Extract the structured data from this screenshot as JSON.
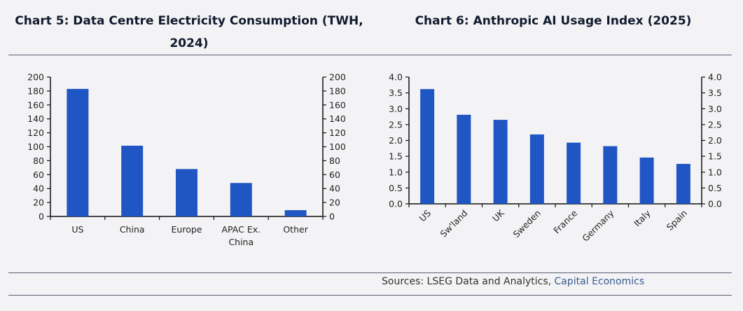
{
  "page": {
    "sources_prefix": "Sources: LSEG Data and Analytics, ",
    "sources_brand": "Capital Economics",
    "colors": {
      "bar": "#1f56c4",
      "axis": "#111111",
      "rule": "#5b5e73",
      "brand_text": "#3a5a8c"
    }
  },
  "chart_data": [
    {
      "type": "bar",
      "title": "Chart 5: Data Centre Electricity Consumption (TWH, 2024)",
      "title_lines": [
        "Chart 5: Data Centre Electricity Consumption (TWH,",
        "2024)"
      ],
      "categories": [
        "US",
        "China",
        "Europe",
        "APAC Ex. China",
        "Other"
      ],
      "category_lines": [
        [
          "US"
        ],
        [
          "China"
        ],
        [
          "Europe"
        ],
        [
          "APAC Ex.",
          "China"
        ],
        [
          "Other"
        ]
      ],
      "values": [
        183,
        101.5,
        68,
        48,
        9
      ],
      "xlabel": "",
      "ylabel": "",
      "ylim": [
        0,
        200
      ],
      "yticks": [
        0,
        20,
        40,
        60,
        80,
        100,
        120,
        140,
        160,
        180,
        200
      ],
      "ytick_labels": [
        "0",
        "20",
        "40",
        "60",
        "80",
        "100",
        "120",
        "140",
        "160",
        "180",
        "200"
      ],
      "dual_y_axis": true,
      "grid": false,
      "legend": "none",
      "xtick_rotation": 0
    },
    {
      "type": "bar",
      "title": "Chart 6: Anthropic AI Usage Index (2025)",
      "title_lines": [
        "Chart 6: Anthropic AI Usage Index (2025)"
      ],
      "categories": [
        "US",
        "Sw'land",
        "UK",
        "Sweden",
        "France",
        "Germany",
        "Italy",
        "Spain"
      ],
      "category_lines": [
        [
          "US"
        ],
        [
          "Sw'land"
        ],
        [
          "UK"
        ],
        [
          "Sweden"
        ],
        [
          "France"
        ],
        [
          "Germany"
        ],
        [
          "Italy"
        ],
        [
          "Spain"
        ]
      ],
      "values": [
        3.62,
        2.81,
        2.65,
        2.19,
        1.93,
        1.82,
        1.46,
        1.26
      ],
      "xlabel": "",
      "ylabel": "",
      "ylim": [
        0,
        4
      ],
      "yticks": [
        0,
        0.5,
        1,
        1.5,
        2,
        2.5,
        3,
        3.5,
        4
      ],
      "ytick_labels": [
        "0.0",
        "0.5",
        "1.0",
        "1.5",
        "2.0",
        "2.5",
        "3.0",
        "3.5",
        "4.0"
      ],
      "dual_y_axis": true,
      "grid": false,
      "legend": "none",
      "xtick_rotation": -45
    }
  ]
}
